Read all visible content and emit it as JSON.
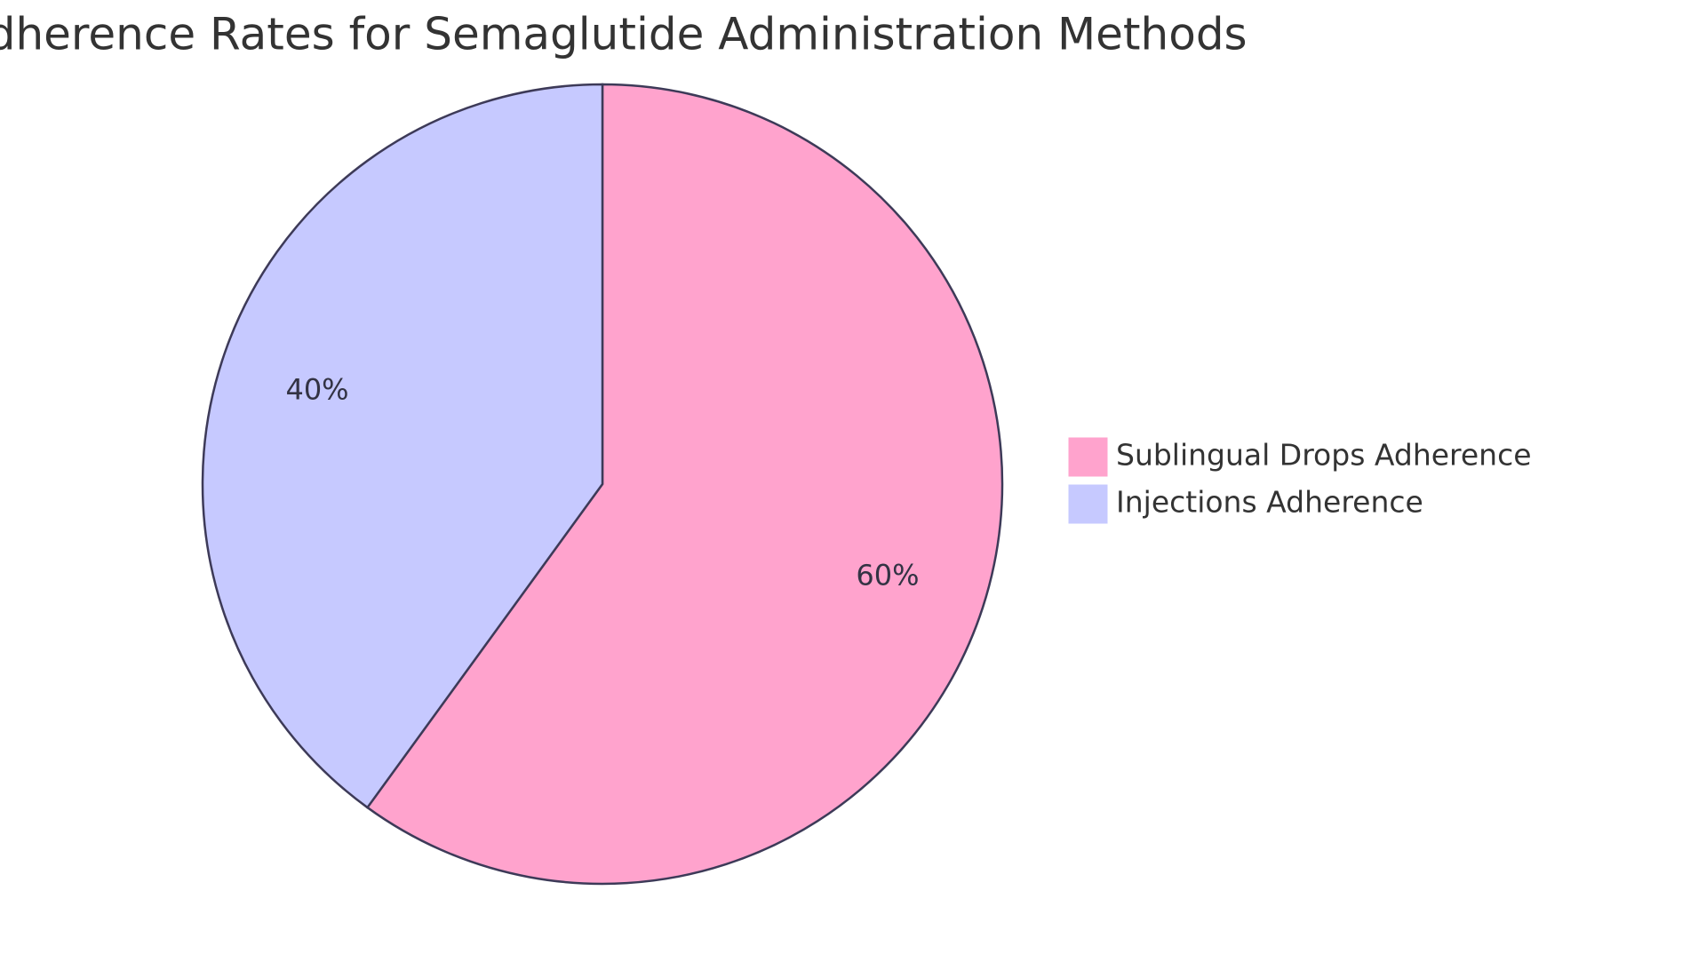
{
  "chart_data": {
    "type": "pie",
    "title": "Adherence Rates for Semaglutide Administration Methods",
    "categories": [
      "Sublingual Drops Adherence",
      "Injections Adherence"
    ],
    "values": [
      60,
      40
    ],
    "value_labels": [
      "60%",
      "40%"
    ],
    "colors": [
      "#ffa3cd",
      "#c6c9ff"
    ],
    "legend": "right"
  }
}
